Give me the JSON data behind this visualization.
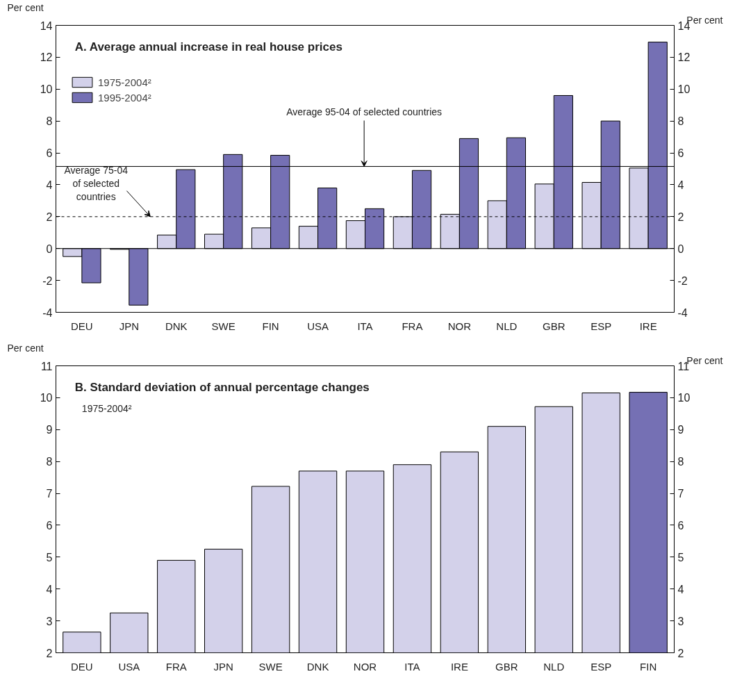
{
  "chart_data": [
    {
      "type": "bar",
      "title": "A. Average annual increase in real house prices",
      "ylabel": "Per cent",
      "y2label": "Per cent",
      "categories": [
        "DEU",
        "JPN",
        "DNK",
        "SWE",
        "FIN",
        "USA",
        "ITA",
        "FRA",
        "NOR",
        "NLD",
        "GBR",
        "ESP",
        "IRE"
      ],
      "series": [
        {
          "name": "1975-2004²",
          "color": "#d3d1ea",
          "values": [
            -0.5,
            -0.05,
            0.85,
            0.9,
            1.3,
            1.4,
            1.75,
            2.0,
            2.15,
            3.0,
            4.05,
            4.15,
            5.05
          ]
        },
        {
          "name": "1995-2004²",
          "color": "#7570b4",
          "values": [
            -2.15,
            -3.55,
            4.95,
            5.9,
            5.85,
            3.8,
            2.5,
            4.9,
            6.9,
            6.95,
            9.6,
            8.0,
            12.95
          ]
        }
      ],
      "ylim": [
        -4,
        14
      ],
      "yticks": [
        -4,
        -2,
        0,
        2,
        4,
        6,
        8,
        10,
        12,
        14
      ],
      "y2lim": [
        -4,
        14
      ],
      "y2ticks": [
        -4,
        -2,
        0,
        2,
        4,
        6,
        8,
        10,
        12,
        14
      ],
      "ref_lines": [
        {
          "axis": "y",
          "value": 5.15,
          "label": "Average 95-04 of selected countries",
          "color": "#000000",
          "line_style": "solid"
        },
        {
          "axis": "y",
          "value": 2.0,
          "label": "Average 75-04\nof selected\ncountries",
          "color": "#000000",
          "line_style": "dashed"
        }
      ],
      "legend": "top left"
    },
    {
      "type": "bar",
      "title": "B. Standard deviation of annual percentage changes",
      "subtitle": "1975-2004²",
      "ylabel": "Per cent",
      "y2label": "Per cent",
      "categories": [
        "DEU",
        "USA",
        "FRA",
        "JPN",
        "SWE",
        "DNK",
        "NOR",
        "ITA",
        "IRE",
        "GBR",
        "NLD",
        "ESP",
        "FIN"
      ],
      "series": [
        {
          "colors": [
            "#d3d1ea",
            "#d3d1ea",
            "#d3d1ea",
            "#d3d1ea",
            "#d3d1ea",
            "#d3d1ea",
            "#d3d1ea",
            "#d3d1ea",
            "#d3d1ea",
            "#d3d1ea",
            "#d3d1ea",
            "#d3d1ea",
            "#7570b4"
          ],
          "values": [
            2.65,
            3.25,
            4.9,
            5.25,
            7.22,
            7.7,
            7.7,
            7.9,
            8.3,
            9.1,
            9.72,
            10.15,
            10.17
          ]
        }
      ],
      "ylim": [
        2,
        11
      ],
      "yticks": [
        2,
        3,
        4,
        5,
        6,
        7,
        8,
        9,
        10,
        11
      ],
      "y2lim": [
        2,
        11
      ],
      "y2ticks": [
        2,
        3,
        4,
        5,
        6,
        7,
        8,
        9,
        10,
        11
      ]
    }
  ]
}
